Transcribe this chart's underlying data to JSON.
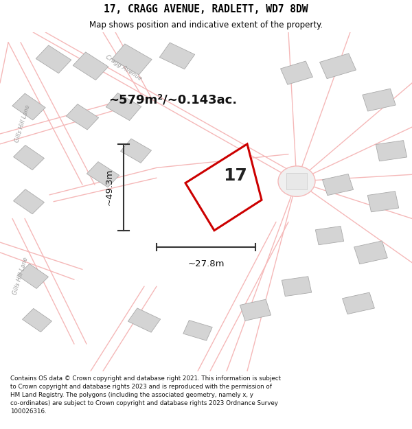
{
  "title": "17, CRAGG AVENUE, RADLETT, WD7 8DW",
  "subtitle": "Map shows position and indicative extent of the property.",
  "title_fontsize": 10.5,
  "subtitle_fontsize": 8.5,
  "bg_color": "#ffffff",
  "map_bg": "#ffffff",
  "footer_text": "Contains OS data © Crown copyright and database right 2021. This information is subject\nto Crown copyright and database rights 2023 and is reproduced with the permission of\nHM Land Registry. The polygons (including the associated geometry, namely x, y\nco-ordinates) are subject to Crown copyright and database rights 2023 Ordnance Survey\n100026316.",
  "area_text": "~579m²/~0.143ac.",
  "label_17": "17",
  "dim_h": "~49.3m",
  "dim_w": "~27.8m",
  "road_color": "#f5b8b8",
  "road_lw": 1.0,
  "building_face": "#d4d4d4",
  "building_edge": "#aaaaaa",
  "property_fill": "#ffffff",
  "property_edge": "#cc0000",
  "property_lw": 2.2,
  "dim_color": "#333333",
  "text_color": "#111111",
  "road_label_color": "#999999"
}
